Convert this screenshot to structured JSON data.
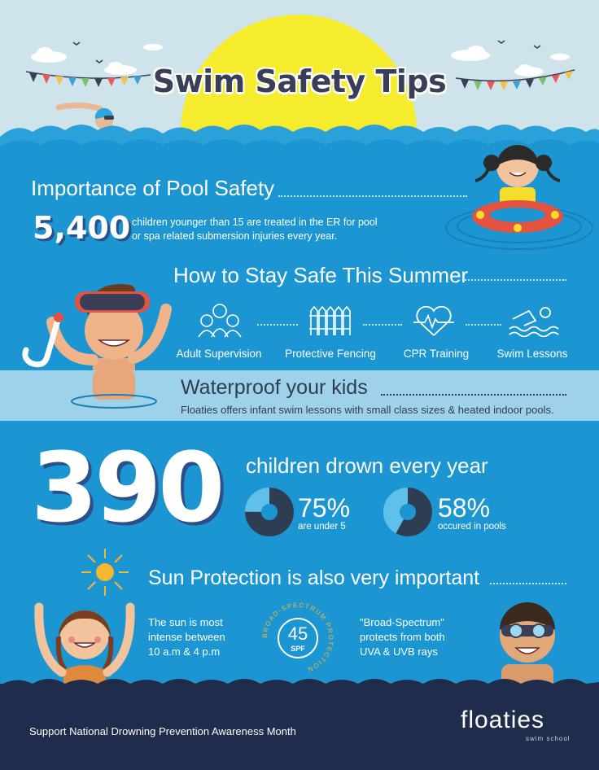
{
  "header": {
    "title": "Swim Safety Tips"
  },
  "importance": {
    "heading": "Importance of Pool Safety",
    "stat": "5,400",
    "text_line1": "children younger than 15 are treated in the ER for pool",
    "text_line2": "or spa related submersion injuries every year."
  },
  "stay_safe": {
    "heading": "How to Stay Safe This Summer",
    "items": [
      {
        "label": "Adult Supervision",
        "icon": "family-icon"
      },
      {
        "label": "Protective Fencing",
        "icon": "fence-icon"
      },
      {
        "label": "CPR Training",
        "icon": "heartbeat-icon"
      },
      {
        "label": "Swim Lessons",
        "icon": "swimmer-icon"
      }
    ]
  },
  "waterproof": {
    "heading": "Waterproof your kids",
    "text": "Floaties offers infant swim lessons with small class sizes & heated indoor pools."
  },
  "drowning": {
    "number": "390",
    "text": "children drown every year",
    "stats": [
      {
        "value": "75%",
        "label": "are under 5",
        "fraction": 0.75
      },
      {
        "value": "58%",
        "label": "occured in pools",
        "fraction": 0.58
      }
    ]
  },
  "sun": {
    "heading": "Sun Protection is also very important",
    "left_line1": "The sun is most",
    "left_line2": "intense between",
    "left_line3": "10 a.m & 4 p.m",
    "badge_number": "45",
    "badge_unit": "SPF",
    "badge_ring": "BROAD-SPECTRUM PROTECTION",
    "right_line1": "\"Broad-Spectrum\"",
    "right_line2": "protects from both",
    "right_line3": "UVA & UVB rays"
  },
  "footer": {
    "text": "Support National Drowning Prevention Awareness Month",
    "brand": "floaties",
    "brand_sub": "swim school"
  },
  "colors": {
    "sky": "#cfe3ea",
    "sea": "#1c96d2",
    "band": "#9ed1ea",
    "deep": "#1f2c4c",
    "sun": "#f5ec2e",
    "title": "#3a3f57",
    "donut_dark": "#2f3d52",
    "donut_light": "#5fc0ea"
  }
}
